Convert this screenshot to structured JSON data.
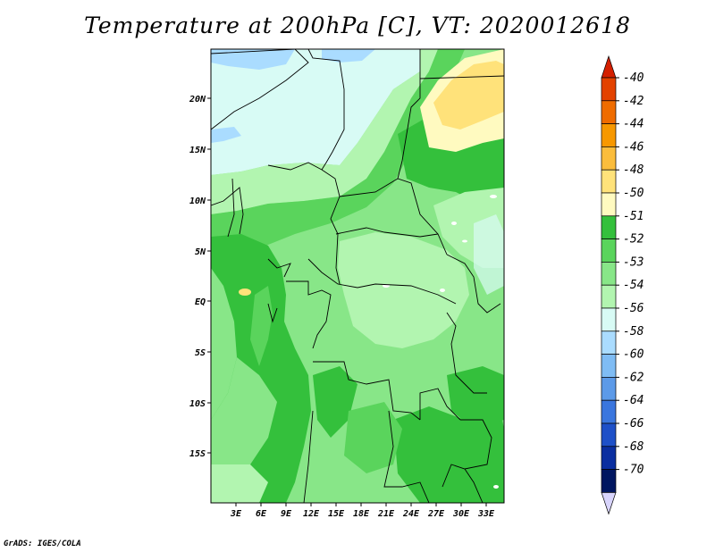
{
  "title": "Temperature at 200hPa [C], VT: 2020012618",
  "footer": "GrADS: IGES/COLA",
  "map": {
    "lon_labels": [
      "3E",
      "6E",
      "9E",
      "12E",
      "15E",
      "18E",
      "21E",
      "24E",
      "27E",
      "30E",
      "33E"
    ],
    "lat_labels": [
      "20N",
      "15N",
      "10N",
      "5N",
      "EQ",
      "5S",
      "10S",
      "15S"
    ]
  },
  "legend": {
    "labels": [
      "-40",
      "-42",
      "-44",
      "-46",
      "-48",
      "-50",
      "-51",
      "-52",
      "-53",
      "-54",
      "-56",
      "-58",
      "-60",
      "-62",
      "-64",
      "-66",
      "-68",
      "-70"
    ],
    "colors": [
      "#d42000",
      "#e34200",
      "#ef6c00",
      "#f79800",
      "#fbbd3c",
      "#ffe27a",
      "#fffac0",
      "#34c03c",
      "#5ad45c",
      "#88e688",
      "#b2f5b0",
      "#d8fbf5",
      "#aadcff",
      "#7fbcf4",
      "#5c9ae8",
      "#3a76de",
      "#1e50c8",
      "#0a2ea0",
      "#001660",
      "#d8d4fc"
    ]
  }
}
